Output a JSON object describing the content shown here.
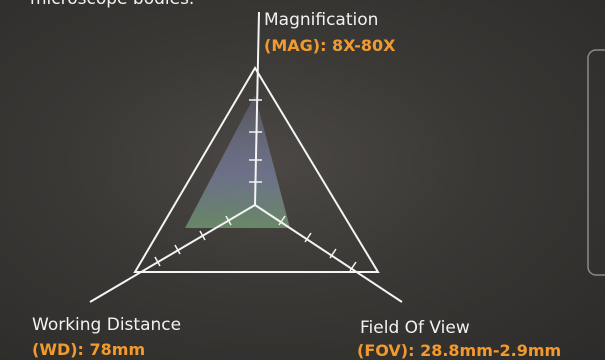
{
  "intro": "microscope bodies.",
  "axes": [
    {
      "name": "Magnification",
      "spec": "(MAG): 8X-80X"
    },
    {
      "name": "Working Distance",
      "spec": "(WD): 78mm"
    },
    {
      "name": "Field Of View",
      "spec": "(FOV): 28.8mm-2.9mm"
    }
  ]
}
